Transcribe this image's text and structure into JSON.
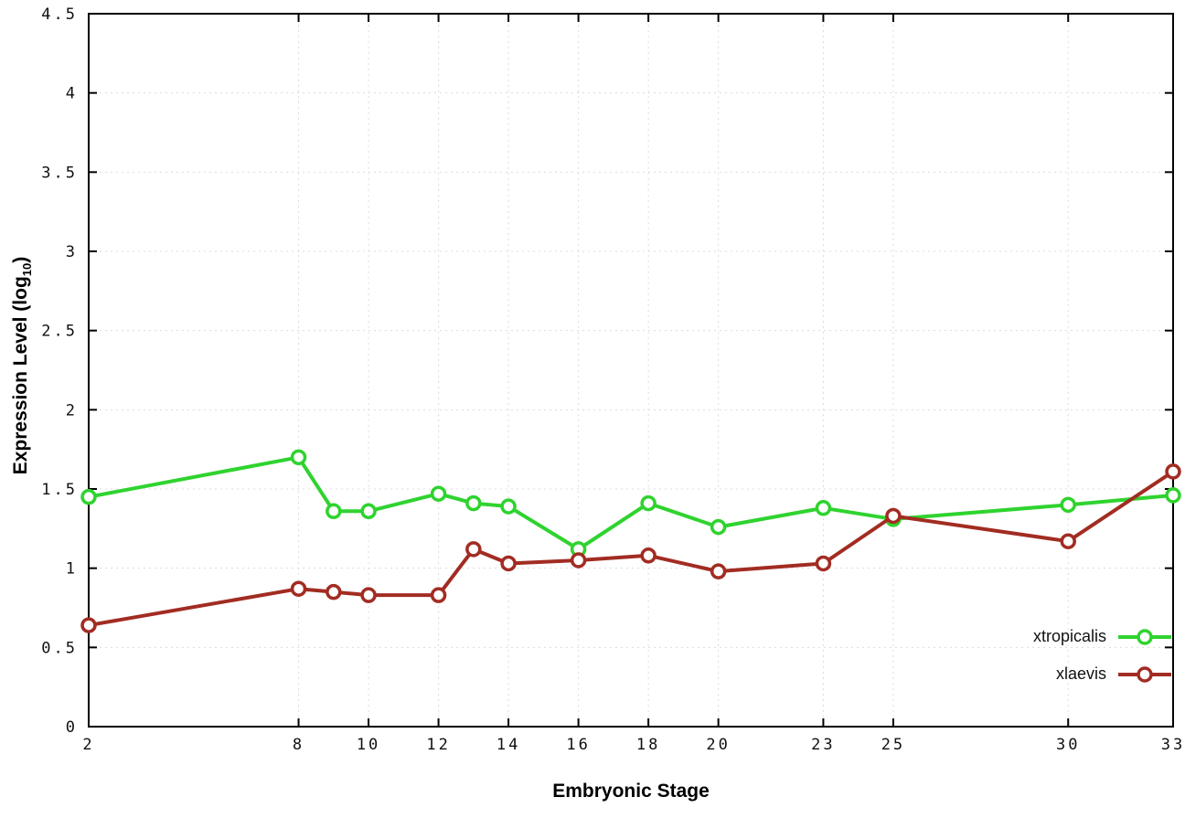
{
  "chart_data": {
    "type": "line",
    "title": "",
    "xlabel": "Embryonic Stage",
    "ylabel": "Expression Level (log10)",
    "ylabel_parts": {
      "prefix": "Expression Level (log",
      "sub": "10",
      "suffix": ")"
    },
    "xlim": [
      2,
      33
    ],
    "ylim": [
      0,
      4.5
    ],
    "xticks": [
      2,
      8,
      10,
      12,
      14,
      16,
      18,
      20,
      23,
      25,
      30,
      33
    ],
    "yticks": [
      0,
      0.5,
      1,
      1.5,
      2,
      2.5,
      3,
      3.5,
      4,
      4.5
    ],
    "grid": true,
    "legend_position": "inside-bottom-right",
    "x": [
      2,
      8,
      9,
      10,
      12,
      13,
      14,
      16,
      18,
      20,
      23,
      25,
      30,
      33
    ],
    "series": [
      {
        "name": "xtropicalis",
        "color": "#2fd32f",
        "values": [
          1.45,
          1.7,
          1.36,
          1.36,
          1.47,
          1.41,
          1.39,
          1.12,
          1.41,
          1.26,
          1.38,
          1.31,
          1.4,
          1.46
        ]
      },
      {
        "name": "xlaevis",
        "color": "#a22c22",
        "values": [
          0.64,
          0.87,
          0.85,
          0.83,
          0.83,
          1.12,
          1.03,
          1.05,
          1.08,
          0.98,
          1.03,
          1.33,
          1.17,
          1.61
        ]
      }
    ]
  }
}
